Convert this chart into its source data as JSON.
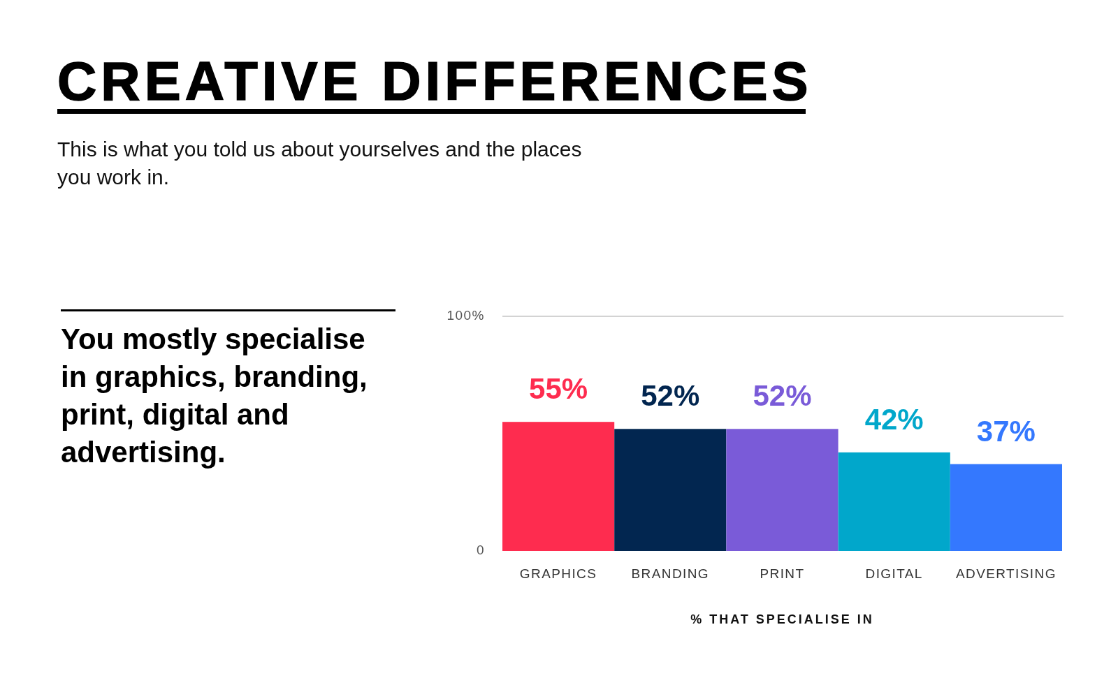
{
  "chart_data": {
    "type": "bar",
    "title": "CREATIVE DIFFERENCES",
    "subtitle": "This is what you told us about yourselves and the places you work in.",
    "annotations": [
      "You mostly specialise in graphics, branding, print, digital and advertising."
    ],
    "categories": [
      "GRAPHICS",
      "BRANDING",
      "PRINT",
      "DIGITAL",
      "ADVERTISING"
    ],
    "values": [
      55,
      52,
      52,
      42,
      37
    ],
    "colors": [
      "#fe2c4f",
      "#022650",
      "#7a5bd8",
      "#01a7cb",
      "#3478fe"
    ],
    "value_labels": [
      "55%",
      "52%",
      "52%",
      "42%",
      "37%"
    ],
    "xlabel": "% THAT SPECIALISE IN",
    "ylim": [
      0,
      100
    ],
    "yticks": [
      0,
      {
        "value": 100,
        "label": "100%"
      }
    ],
    "ref_lines": [
      {
        "axis": "y",
        "value": 100,
        "color": "#c4c4c4"
      }
    ]
  }
}
